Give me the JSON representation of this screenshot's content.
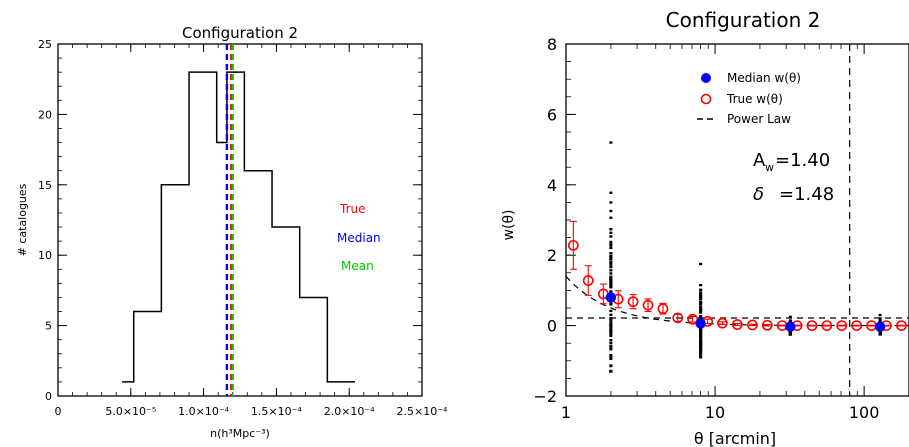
{
  "colors": {
    "true": "#ff0000",
    "median": "#0000ff",
    "mean": "#00cc00",
    "axes": "#000000",
    "errorbar": "#ff0000"
  },
  "chart_data": [
    {
      "type": "histogram",
      "title": "Configuration 2",
      "xlabel": "n(h³Mpc⁻³)",
      "ylabel": "# catalogues",
      "xlim": [
        0,
        0.00025
      ],
      "ylim": [
        0,
        25
      ],
      "x_ticks": [
        0,
        5e-05,
        0.0001,
        0.00015,
        0.0002,
        0.00025
      ],
      "x_tick_labels": [
        "0",
        "5.0×10⁻⁵",
        "1.0×10⁻⁴",
        "1.5×10⁻⁴",
        "2.0×10⁻⁴",
        "2.5×10⁻⁴"
      ],
      "y_ticks": [
        0,
        5,
        10,
        15,
        20,
        25
      ],
      "bin_edges": [
        4.4e-05,
        5.2e-05,
        7.1e-05,
        9e-05,
        0.000109,
        0.000116,
        0.000128,
        0.000147,
        0.000166,
        0.000185,
        0.000204
      ],
      "counts": [
        1,
        6,
        15,
        23,
        18,
        23,
        16,
        12,
        7,
        1
      ],
      "vlines": [
        {
          "name": "Median",
          "x": 0.000116,
          "color": "#0000ff"
        },
        {
          "name": "True",
          "x": 0.000119,
          "color": "#ff0000"
        },
        {
          "name": "Mean",
          "x": 0.00012,
          "color": "#00cc00"
        }
      ],
      "legend_labels": [
        "True",
        "Median",
        "Mean"
      ],
      "legend_position": "right"
    },
    {
      "type": "scatter",
      "title": "Configuration 2",
      "xlabel": "θ [arcmin]",
      "ylabel": "w(θ)",
      "xscale": "log",
      "xlim": [
        1,
        200
      ],
      "ylim": [
        -2,
        8
      ],
      "x_ticks": [
        1,
        10,
        100
      ],
      "x_tick_labels": [
        "1",
        "10",
        "100"
      ],
      "y_ticks": [
        -2,
        0,
        2,
        4,
        6,
        8
      ],
      "legend": [
        "Median w(θ)",
        "True w(θ)",
        "Power Law"
      ],
      "legend_position": "top-right",
      "annotations": [
        "A",
        "w",
        "=1.40",
        "δ",
        "=1.48"
      ],
      "vline_x": 80,
      "true_w": {
        "x": [
          1.12,
          1.41,
          1.78,
          2.24,
          2.82,
          3.55,
          4.47,
          5.62,
          7.08,
          8.91,
          11.2,
          14.1,
          17.8,
          22.4,
          28.2,
          35.5,
          44.7,
          56.2,
          70.8,
          89.1,
          112,
          141,
          178
        ],
        "y": [
          2.28,
          1.28,
          0.9,
          0.75,
          0.68,
          0.58,
          0.48,
          0.22,
          0.18,
          0.12,
          0.07,
          0.03,
          0.02,
          0.01,
          0.0,
          0.0,
          0.0,
          0.0,
          0.0,
          0.0,
          0.0,
          0.0,
          0.0
        ],
        "yerr": [
          0.68,
          0.42,
          0.28,
          0.24,
          0.2,
          0.18,
          0.15,
          0.1,
          0.08,
          0.06,
          0.04,
          0.03,
          0.02,
          0.02,
          0.01,
          0.01,
          0.01,
          0.01,
          0.01,
          0.01,
          0.01,
          0.01,
          0.01
        ]
      },
      "median_w": {
        "x": [
          2.0,
          8.0,
          32.0,
          128.0
        ],
        "y": [
          0.8,
          0.06,
          -0.03,
          -0.03
        ]
      },
      "catalogue_samples": [
        {
          "x": 2.0,
          "y_min": -1.3,
          "y_max": 5.2
        },
        {
          "x": 8.0,
          "y_min": -0.9,
          "y_max": 1.75
        },
        {
          "x": 32.0,
          "y_min": -0.25,
          "y_max": 0.25
        },
        {
          "x": 128.0,
          "y_min": -0.25,
          "y_max": 0.3
        }
      ],
      "power_law": {
        "A": 1.4,
        "delta": 1.48
      }
    }
  ]
}
